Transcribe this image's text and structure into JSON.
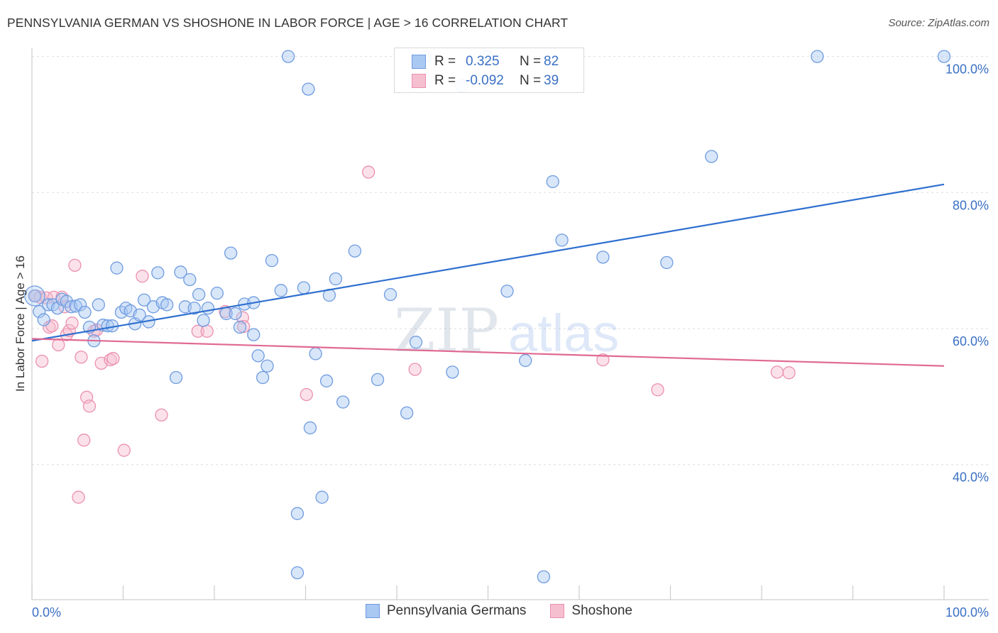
{
  "header": {
    "title": "PENNSYLVANIA GERMAN VS SHOSHONE IN LABOR FORCE | AGE > 16 CORRELATION CHART",
    "source": "Source: ZipAtlas.com"
  },
  "watermark": {
    "zip": "ZIP",
    "atlas": "atlas"
  },
  "legend": {
    "rows": [
      {
        "r_label": "R =",
        "r_value": "0.325",
        "n_label": "N =",
        "n_value": "82"
      },
      {
        "r_label": "R =",
        "r_value": "-0.092",
        "n_label": "N =",
        "n_value": "39"
      }
    ]
  },
  "bottom_legend": {
    "items": [
      {
        "label": "Pennsylvania Germans"
      },
      {
        "label": "Shoshone"
      }
    ]
  },
  "colors": {
    "blue_fill": "#a9c8f2",
    "blue_stroke": "#6f9ce0",
    "blue_line": "#2f6fcf",
    "pink_fill": "#f6bfd0",
    "pink_stroke": "#eb90ae",
    "pink_line": "#e06a93",
    "tick_text": "#3a70c4"
  },
  "chart_data": {
    "type": "scatter",
    "title": "PENNSYLVANIA GERMAN VS SHOSHONE IN LABOR FORCE | AGE > 16 CORRELATION CHART",
    "xlabel": "",
    "ylabel": "In Labor Force | Age > 16",
    "xlim": [
      0,
      100
    ],
    "ylim": [
      20,
      101
    ],
    "x_tick_labels": [
      "0.0%",
      "100.0%"
    ],
    "y_ticks": [
      40,
      60,
      80,
      100
    ],
    "y_tick_labels": [
      "40.0%",
      "60.0%",
      "80.0%",
      "100.0%"
    ],
    "grid": true,
    "legend_position": "top-center",
    "series": [
      {
        "name": "Pennsylvania Germans",
        "color": "#6f9ce0",
        "trend": {
          "x": [
            0,
            100
          ],
          "y": [
            58.2,
            81.2
          ]
        },
        "points": [
          [
            0.3,
            64.8
          ],
          [
            0.8,
            62.5
          ],
          [
            1.3,
            61.3
          ],
          [
            1.8,
            63.5
          ],
          [
            2.3,
            63.5
          ],
          [
            2.8,
            63.0
          ],
          [
            3.3,
            64.3
          ],
          [
            3.8,
            64.0
          ],
          [
            4.3,
            63.2
          ],
          [
            4.8,
            63.3
          ],
          [
            5.3,
            63.5
          ],
          [
            5.8,
            62.4
          ],
          [
            6.3,
            60.2
          ],
          [
            6.8,
            58.2
          ],
          [
            7.3,
            63.5
          ],
          [
            7.8,
            60.5
          ],
          [
            8.3,
            60.4
          ],
          [
            8.8,
            60.4
          ],
          [
            9.3,
            68.9
          ],
          [
            9.8,
            62.4
          ],
          [
            10.3,
            63.0
          ],
          [
            10.8,
            62.6
          ],
          [
            11.3,
            60.7
          ],
          [
            11.8,
            62.0
          ],
          [
            12.3,
            64.2
          ],
          [
            12.8,
            61.0
          ],
          [
            13.3,
            63.2
          ],
          [
            13.8,
            68.2
          ],
          [
            14.3,
            63.8
          ],
          [
            14.8,
            63.5
          ],
          [
            15.8,
            52.8
          ],
          [
            16.3,
            68.3
          ],
          [
            16.8,
            63.2
          ],
          [
            17.3,
            67.2
          ],
          [
            17.8,
            63.0
          ],
          [
            18.3,
            65.0
          ],
          [
            18.8,
            61.2
          ],
          [
            19.3,
            63.0
          ],
          [
            20.3,
            65.2
          ],
          [
            21.3,
            62.2
          ],
          [
            21.8,
            71.1
          ],
          [
            22.3,
            62.2
          ],
          [
            22.8,
            60.2
          ],
          [
            23.3,
            63.6
          ],
          [
            24.3,
            63.8
          ],
          [
            24.3,
            59.1
          ],
          [
            24.8,
            56.0
          ],
          [
            25.3,
            52.8
          ],
          [
            25.8,
            54.5
          ],
          [
            26.3,
            70.0
          ],
          [
            27.3,
            65.6
          ],
          [
            28.1,
            100.0
          ],
          [
            29.1,
            24.1
          ],
          [
            29.1,
            32.8
          ],
          [
            29.8,
            66.0
          ],
          [
            30.3,
            95.2
          ],
          [
            30.5,
            45.4
          ],
          [
            31.1,
            56.3
          ],
          [
            31.8,
            35.2
          ],
          [
            32.3,
            52.3
          ],
          [
            32.6,
            64.9
          ],
          [
            33.3,
            67.3
          ],
          [
            34.1,
            49.2
          ],
          [
            35.4,
            71.4
          ],
          [
            37.9,
            52.5
          ],
          [
            39.3,
            65.0
          ],
          [
            41.1,
            47.6
          ],
          [
            42.1,
            58.0
          ],
          [
            46.1,
            53.6
          ],
          [
            47.1,
            95.7
          ],
          [
            52.1,
            65.5
          ],
          [
            54.1,
            55.3
          ],
          [
            56.1,
            23.5
          ],
          [
            57.1,
            81.6
          ],
          [
            58.1,
            73.0
          ],
          [
            62.6,
            70.5
          ],
          [
            69.6,
            69.7
          ],
          [
            74.5,
            85.3
          ],
          [
            86.1,
            100.0
          ],
          [
            100.0,
            100.0
          ],
          [
            43.1,
            100.0
          ],
          [
            49.9,
            100.0
          ]
        ]
      },
      {
        "name": "Shoshone",
        "color": "#eb90ae",
        "trend": {
          "x": [
            0,
            100
          ],
          "y": [
            58.5,
            54.5
          ]
        },
        "points": [
          [
            0.4,
            64.8
          ],
          [
            0.9,
            64.6
          ],
          [
            1.1,
            55.2
          ],
          [
            1.6,
            64.5
          ],
          [
            1.9,
            60.2
          ],
          [
            2.2,
            60.4
          ],
          [
            2.4,
            64.6
          ],
          [
            2.9,
            57.6
          ],
          [
            3.3,
            64.6
          ],
          [
            3.6,
            63.2
          ],
          [
            3.8,
            59.1
          ],
          [
            4.1,
            59.7
          ],
          [
            4.4,
            60.8
          ],
          [
            4.7,
            69.3
          ],
          [
            5.1,
            35.2
          ],
          [
            5.4,
            55.8
          ],
          [
            5.7,
            43.6
          ],
          [
            6.0,
            49.9
          ],
          [
            6.3,
            48.6
          ],
          [
            6.8,
            59.6
          ],
          [
            7.1,
            59.8
          ],
          [
            7.6,
            54.9
          ],
          [
            8.6,
            55.4
          ],
          [
            8.9,
            55.6
          ],
          [
            10.1,
            42.1
          ],
          [
            12.1,
            67.7
          ],
          [
            14.2,
            47.3
          ],
          [
            18.2,
            59.6
          ],
          [
            19.2,
            59.6
          ],
          [
            21.2,
            62.5
          ],
          [
            23.1,
            61.6
          ],
          [
            23.2,
            60.3
          ],
          [
            30.1,
            50.3
          ],
          [
            36.9,
            83.0
          ],
          [
            42.0,
            54.0
          ],
          [
            62.6,
            55.4
          ],
          [
            68.6,
            51.0
          ],
          [
            81.7,
            53.6
          ],
          [
            83.0,
            53.5
          ]
        ]
      }
    ]
  }
}
